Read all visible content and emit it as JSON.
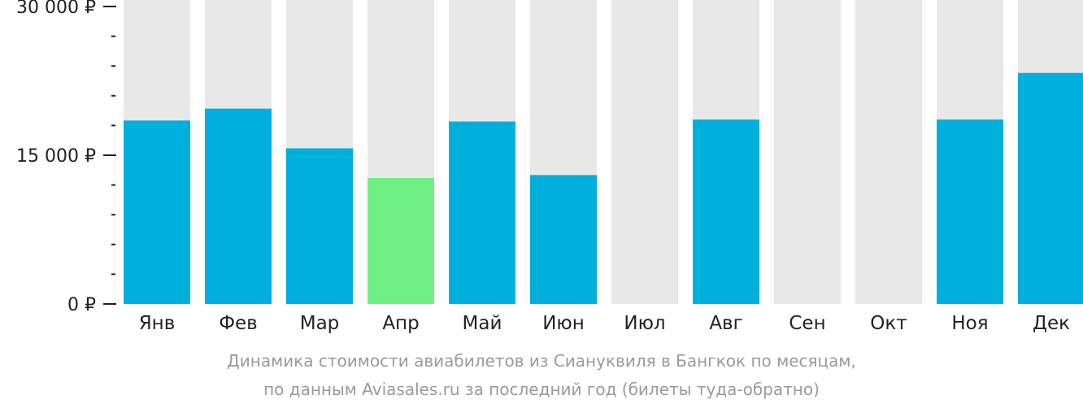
{
  "chart_data": {
    "type": "bar",
    "categories": [
      "Янв",
      "Фев",
      "Мар",
      "Апр",
      "Май",
      "Июн",
      "Июл",
      "Авг",
      "Сен",
      "Окт",
      "Ноя",
      "Дек"
    ],
    "values": [
      18500,
      19700,
      15700,
      12700,
      18400,
      13000,
      null,
      18600,
      null,
      null,
      18600,
      23300
    ],
    "highlight_index": 3,
    "ylim": [
      0,
      30000
    ],
    "yticks": [
      {
        "value": 0,
        "label": "0 ₽"
      },
      {
        "value": 15000,
        "label": "15 000 ₽"
      },
      {
        "value": 30000,
        "label": "30 000 ₽"
      }
    ],
    "minor_tick_step": 3000,
    "colors": {
      "bar": "#00b0dc",
      "highlight": "#6ef085",
      "background_column": "#e8e8e8",
      "axis": "#222222"
    }
  },
  "caption": {
    "line1": "Динамика стоимости авиабилетов из Сиануквиля в Бангкок по месяцам,",
    "line2": "по данным Aviasales.ru за последний год (билеты туда-обратно)"
  }
}
